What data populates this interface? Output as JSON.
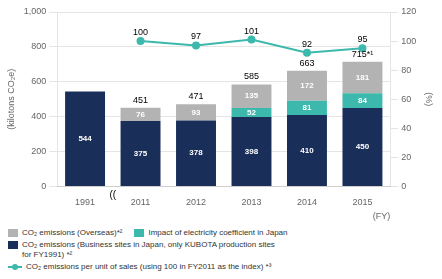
{
  "chart_data": {
    "type": "bar",
    "stacked": true,
    "categories": [
      "1991",
      "2011",
      "2012",
      "2013",
      "2014",
      "2015"
    ],
    "series": [
      {
        "name": "CO₂ emissions (Business sites in Japan, only KUBOTA production sites\nfor FY1991) *²",
        "color": "#1a2e5a",
        "values": [
          544,
          375,
          378,
          398,
          410,
          450
        ]
      },
      {
        "name": "Impact of electricity coefficient in Japan",
        "color": "#3db8ad",
        "values": [
          0,
          0,
          0,
          52,
          81,
          84
        ]
      },
      {
        "name": "CO₂ emissions (Overseas)*²",
        "color": "#b3b3b3",
        "values": [
          0,
          76,
          93,
          135,
          172,
          181
        ]
      },
      {
        "name": "CO₂ emissions per unit of sales (using 100 in FY2011 as the index) *³",
        "type": "line",
        "axis": "y2",
        "color": "#3db8ad",
        "marker": "circle",
        "values": [
          null,
          100,
          97,
          101,
          92,
          95
        ]
      }
    ],
    "totals": {
      "values": [
        null,
        451,
        471,
        585,
        663,
        715
      ],
      "value_labels": [
        null,
        "451",
        "471",
        "585",
        "663",
        "715*¹"
      ]
    },
    "data_labels": true,
    "ylim": [
      0,
      1000
    ],
    "yticks": [
      0,
      200,
      400,
      600,
      800,
      1000
    ],
    "y2lim": [
      0,
      120
    ],
    "y2ticks": [
      0,
      20,
      40,
      60,
      80,
      100,
      120
    ],
    "ylabel": "(kilotons CO₂e)",
    "y2label": "(%)",
    "xlabel": "(FY)",
    "annotations": [
      {
        "text": "(("
      }
    ],
    "grid": true,
    "legend": "bottom"
  }
}
